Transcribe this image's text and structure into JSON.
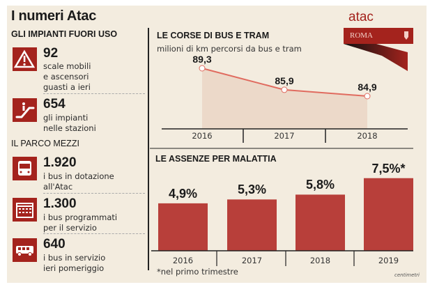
{
  "title": "I numeri Atac",
  "logo": {
    "text": "atac",
    "banner": "ROMA",
    "colors": {
      "red": "#a4231d"
    }
  },
  "left": {
    "section1": "GLI IMPIANTI FUORI USO",
    "items1": [
      {
        "icon": "warning-escalator-icon",
        "value": "92",
        "lines": [
          "scale mobili",
          "e ascensori",
          "guasti a ieri"
        ]
      },
      {
        "icon": "escalator-icon",
        "value": "654",
        "lines": [
          "gli impianti",
          "nelle stazioni"
        ]
      }
    ],
    "section2": "IL PARCO MEZZI",
    "items2": [
      {
        "icon": "bus-front-icon",
        "value": "1.920",
        "lines": [
          "i bus in dotazione",
          "all'Atac"
        ]
      },
      {
        "icon": "calendar-icon",
        "value": "1.300",
        "lines": [
          "i bus programmati",
          "per il servizio"
        ]
      },
      {
        "icon": "bus-side-icon",
        "value": "640",
        "lines": [
          "i bus in servizio",
          "ieri pomeriggio"
        ]
      }
    ]
  },
  "chart_data": [
    {
      "type": "area",
      "title": "LE CORSE DI BUS E TRAM",
      "subtitle": "milioni di km percorsi da bus e tram",
      "categories": [
        "2016",
        "2017",
        "2018"
      ],
      "values": [
        89.3,
        85.9,
        84.9
      ],
      "labels": [
        "89,3",
        "85,9",
        "84,9"
      ],
      "color": "#e06b5f",
      "fill": "#ecd9c9",
      "grid": false
    },
    {
      "type": "bar",
      "title": "LE ASSENZE PER MALATTIA",
      "categories": [
        "2016",
        "2017",
        "2018",
        "2019"
      ],
      "values": [
        4.9,
        5.3,
        5.8,
        7.5
      ],
      "labels": [
        "4,9%",
        "5,3%",
        "5,8%",
        "7,5%*"
      ],
      "color": "#b83f3a",
      "footnote": "*nel primo trimestre",
      "grid": false
    }
  ],
  "credit": "centimetri"
}
